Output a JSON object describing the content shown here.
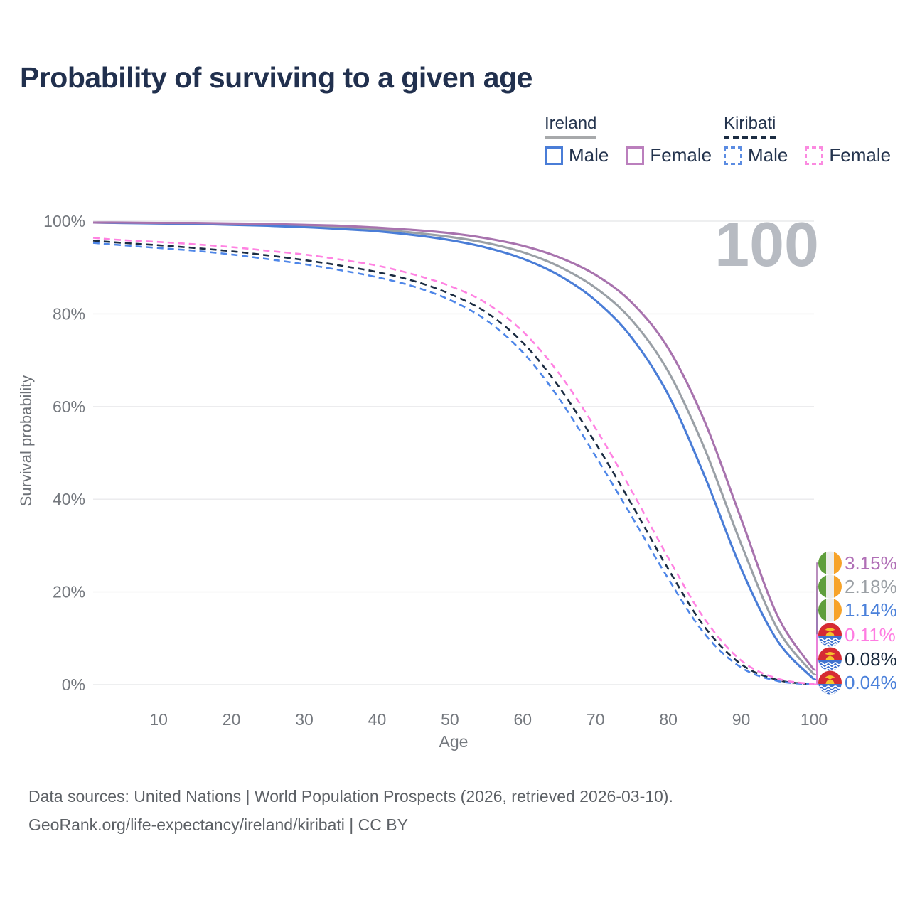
{
  "page": {
    "title": "Probability of surviving to a given age",
    "watermark": "100",
    "footer_line1": "Data sources: United Nations | World Population Prospects (2026, retrieved 2026-03-10).",
    "footer_line2": "GeoRank.org/life-expectancy/ireland/kiribati | CC BY"
  },
  "legend": {
    "groups": [
      {
        "label": "Ireland",
        "line_style": "solid",
        "underline_color": "#a7a9ab",
        "items": [
          {
            "label": "Male",
            "color": "#4a7dd7"
          },
          {
            "label": "Female",
            "color": "#bb7fbd"
          }
        ]
      },
      {
        "label": "Kiribati",
        "line_style": "dashed",
        "underline_color": "#1b2c42",
        "items": [
          {
            "label": "Male",
            "color": "#5b8ce2"
          },
          {
            "label": "Female",
            "color": "#fb8ae0"
          }
        ]
      }
    ]
  },
  "chart_data": {
    "type": "line",
    "title": "Probability of surviving to a given age",
    "xlabel": "Age",
    "ylabel": "Survival probability",
    "xlim": [
      1,
      100
    ],
    "ylim": [
      0,
      100
    ],
    "x_ticks": [
      10,
      20,
      30,
      40,
      50,
      60,
      70,
      80,
      90,
      100
    ],
    "y_ticks": [
      {
        "value": 0,
        "label": "0%"
      },
      {
        "value": 20,
        "label": "20%"
      },
      {
        "value": 40,
        "label": "40%"
      },
      {
        "value": 60,
        "label": "60%"
      },
      {
        "value": 80,
        "label": "80%"
      },
      {
        "value": 100,
        "label": "100%"
      }
    ],
    "grid": true,
    "legend_position": "top-right",
    "watermark": "100",
    "x": [
      1,
      5,
      10,
      15,
      20,
      25,
      30,
      35,
      40,
      45,
      50,
      55,
      60,
      65,
      70,
      75,
      80,
      85,
      90,
      95,
      100
    ],
    "series": [
      {
        "id": "ireland_both",
        "name": "Ireland — Both sexes",
        "country": "Ireland",
        "sex": "Both",
        "line_style": "solid",
        "color": "#9aa0a6",
        "label_color": "#9ba0a5",
        "end_label": "2.18%",
        "values": [
          99.7,
          99.6,
          99.6,
          99.5,
          99.4,
          99.2,
          99.0,
          98.6,
          98.2,
          97.5,
          96.6,
          95.3,
          93.3,
          90.2,
          85.6,
          78.6,
          67.5,
          50.8,
          30.3,
          12.0,
          2.18
        ]
      },
      {
        "id": "ireland_male",
        "name": "Ireland — Male",
        "country": "Ireland",
        "sex": "Male",
        "line_style": "solid",
        "color": "#4a7dd7",
        "label_color": "#4a80da",
        "end_label": "1.14%",
        "values": [
          99.7,
          99.6,
          99.5,
          99.4,
          99.2,
          99.0,
          98.7,
          98.3,
          97.8,
          97.0,
          95.9,
          94.3,
          91.9,
          88.3,
          82.9,
          74.8,
          62.5,
          44.9,
          25.0,
          9.4,
          1.14
        ]
      },
      {
        "id": "ireland_female",
        "name": "Ireland — Female",
        "country": "Ireland",
        "sex": "Female",
        "line_style": "solid",
        "color": "#a873ae",
        "label_color": "#b06fb6",
        "end_label": "3.15%",
        "values": [
          99.7,
          99.7,
          99.6,
          99.6,
          99.5,
          99.4,
          99.2,
          99.0,
          98.6,
          98.1,
          97.4,
          96.3,
          94.7,
          92.2,
          88.4,
          82.4,
          72.5,
          56.7,
          35.7,
          14.8,
          3.15
        ]
      },
      {
        "id": "kiribati_both",
        "name": "Kiribati — Both sexes",
        "country": "Kiribati",
        "sex": "Both",
        "line_style": "dashed",
        "color": "#1b2c42",
        "label_color": "#16273c",
        "end_label": "0.08%",
        "values": [
          95.8,
          95.3,
          94.8,
          94.2,
          93.5,
          92.6,
          91.6,
          90.4,
          89.0,
          87.1,
          84.3,
          80.3,
          73.8,
          64.2,
          52.1,
          38.8,
          24.9,
          12.4,
          4.4,
          1.0,
          0.08
        ]
      },
      {
        "id": "kiribati_male",
        "name": "Kiribati — Male",
        "country": "Kiribati",
        "sex": "Male",
        "line_style": "dashed",
        "color": "#4e86e8",
        "label_color": "#4a80da",
        "end_label": "0.04%",
        "values": [
          95.3,
          94.8,
          94.2,
          93.6,
          92.8,
          91.8,
          90.7,
          89.4,
          87.9,
          85.9,
          83.0,
          78.6,
          71.7,
          61.7,
          49.3,
          36.2,
          22.8,
          10.9,
          3.7,
          0.8,
          0.04
        ]
      },
      {
        "id": "kiribati_female",
        "name": "Kiribati — Female",
        "country": "Kiribati",
        "sex": "Female",
        "line_style": "dashed",
        "color": "#ff82e2",
        "label_color": "#ff7ce2",
        "end_label": "0.11%",
        "values": [
          96.4,
          95.9,
          95.5,
          95.0,
          94.4,
          93.6,
          92.8,
          91.7,
          90.4,
          88.5,
          86.0,
          82.3,
          76.2,
          67.1,
          55.3,
          41.7,
          27.3,
          14.1,
          5.2,
          1.3,
          0.11
        ]
      }
    ],
    "flag_colors": {
      "ireland": {
        "green": "#5f9e3c",
        "white": "#ededeb",
        "orange": "#f7a329"
      },
      "kiribati": {
        "red": "#d62a33",
        "blue": "#3f72cf",
        "yellow": "#f5c32c",
        "wave": "#ffffff"
      }
    }
  }
}
